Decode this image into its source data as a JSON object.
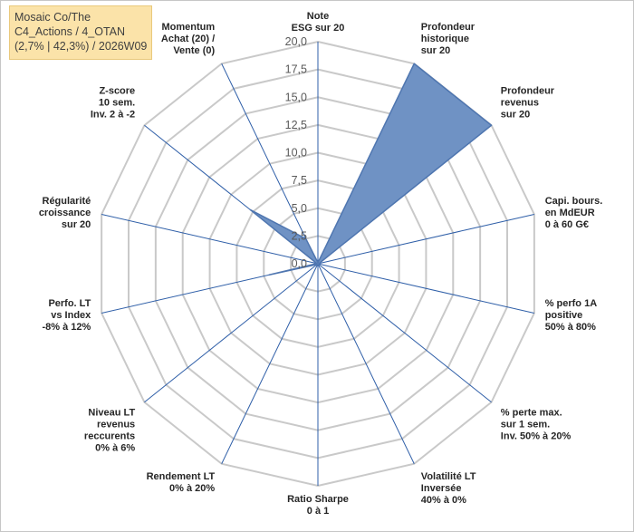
{
  "title_lines": [
    "Mosaic Co/The",
    "C4_Actions / 4_OTAN",
    "(2,7% | 42,3%) / 2026W09"
  ],
  "colors": {
    "fill": "#6f92c4",
    "stroke": "#4f76b0",
    "spoke": "#2f5fa8",
    "ring": "#c9c9c9",
    "title_bg": "#fbe3a9"
  },
  "chart_data": {
    "type": "radar",
    "rmax": 20,
    "tick_labels": [
      "0,0",
      "2,5",
      "5,0",
      "7,5",
      "10,0",
      "12,5",
      "15,0",
      "17,5",
      "20,0"
    ],
    "axes": [
      {
        "label": [
          "Note",
          "ESG sur 20"
        ],
        "value": 0.1
      },
      {
        "label": [
          "Profondeur",
          "historique",
          "sur 20"
        ],
        "value": 20
      },
      {
        "label": [
          "Profondeur",
          "revenus",
          "sur 20"
        ],
        "value": 20
      },
      {
        "label": [
          "Capi. bours.",
          "en MdEUR",
          "0 à 60 G€"
        ],
        "value": 0.1
      },
      {
        "label": [
          "% perfo 1A",
          "positive",
          "50% à 80%"
        ],
        "value": 0.1
      },
      {
        "label": [
          "% perte max.",
          "sur 1 sem.",
          "Inv. 50% à 20%"
        ],
        "value": 0.1
      },
      {
        "label": [
          "Volatilité LT",
          "Inversée",
          "40% à 0%"
        ],
        "value": 0.1
      },
      {
        "label": [
          "Ratio Sharpe",
          "0 à 1"
        ],
        "value": 0.1
      },
      {
        "label": [
          "Rendement LT",
          "0% à 20%"
        ],
        "value": 0.1
      },
      {
        "label": [
          "Niveau LT",
          "revenus",
          "reccurents",
          "0% à 6%"
        ],
        "value": 0.1
      },
      {
        "label": [
          "Perfo. LT",
          "vs Index",
          "-8% à 12%"
        ],
        "value": 4.5
      },
      {
        "label": [
          "Régularité",
          "croissance",
          "sur 20"
        ],
        "value": 0.1
      },
      {
        "label": [
          "Z-score",
          "10 sem.",
          "Inv. 2 à -2"
        ],
        "value": 7.8
      },
      {
        "label": [
          "Momentum",
          "Achat (20) /",
          "Vente (0)"
        ],
        "value": 2.5
      }
    ]
  }
}
